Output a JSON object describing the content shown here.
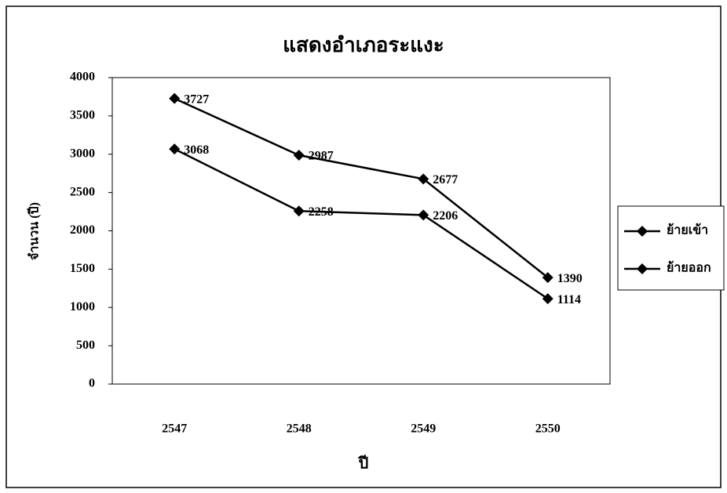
{
  "chart_data": {
    "type": "line",
    "title": "แสดงอำเภอระแงะ",
    "xlabel": "ปี",
    "ylabel": "จำนวน (ปี)",
    "categories": [
      "2547",
      "2548",
      "2549",
      "2550"
    ],
    "series": [
      {
        "name": "ย้ายเข้า",
        "color": "#000000",
        "values": [
          3727,
          2987,
          2677,
          1390
        ]
      },
      {
        "name": "ย้ายออก",
        "color": "#000000",
        "values": [
          3068,
          2258,
          2206,
          1114
        ]
      }
    ],
    "ylim": [
      0,
      4000
    ],
    "yticks": [
      0,
      500,
      1000,
      1500,
      2000,
      2500,
      3000,
      3500,
      4000
    ],
    "grid": false,
    "legend": "right"
  }
}
